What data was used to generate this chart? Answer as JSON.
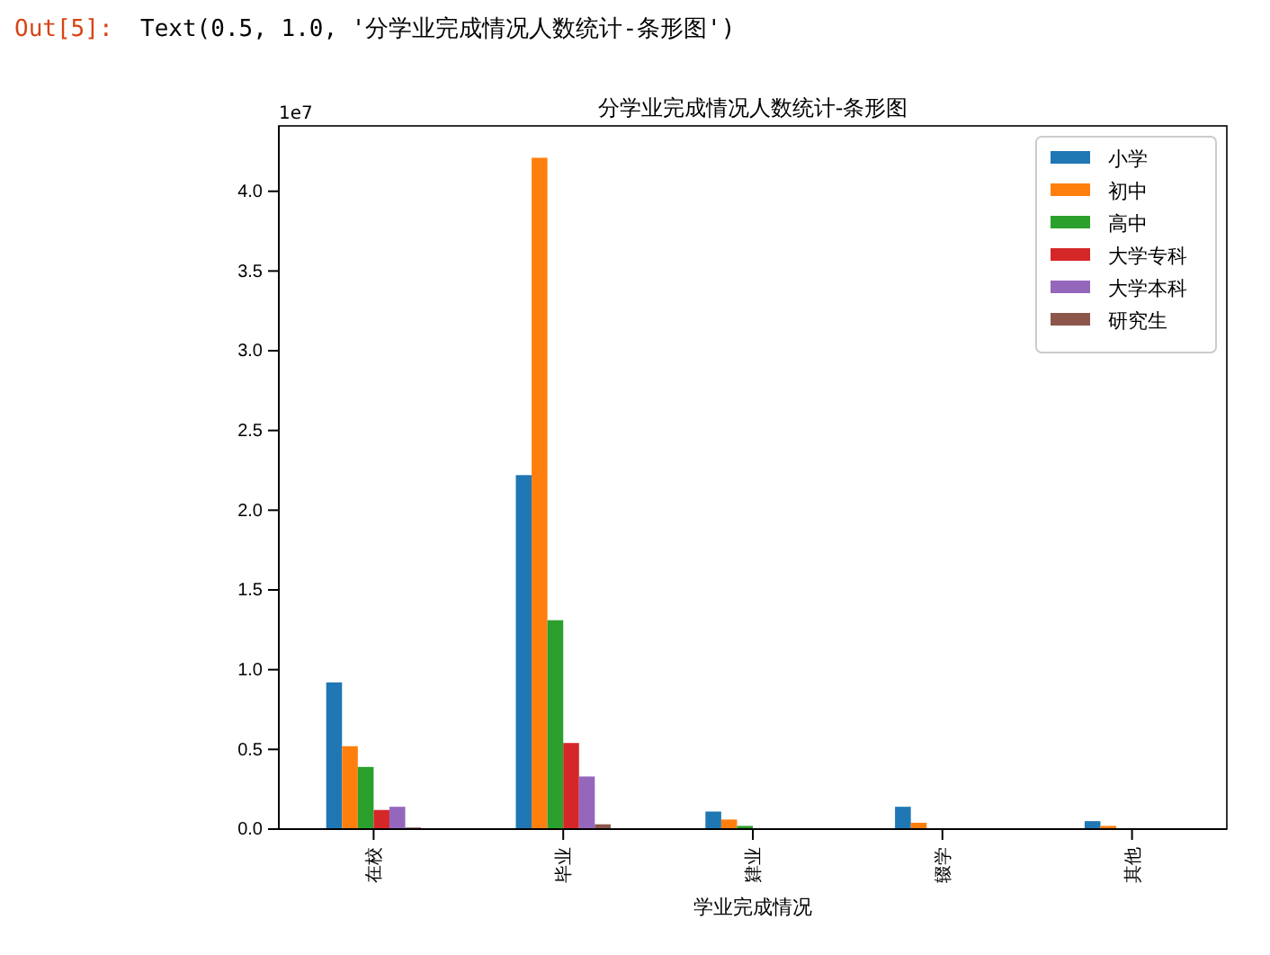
{
  "chart_data": {
    "type": "bar",
    "title": "分学业完成情况人数统计-条形图",
    "xlabel": "学业完成情况",
    "categories": [
      "在校",
      "毕业",
      "肄业",
      "辍学",
      "其他"
    ],
    "series": [
      {
        "name": "小学",
        "color": "#1f77b4",
        "values": [
          0.92,
          2.22,
          0.11,
          0.14,
          0.05
        ]
      },
      {
        "name": "初中",
        "color": "#ff7f0e",
        "values": [
          0.52,
          4.21,
          0.06,
          0.04,
          0.02
        ]
      },
      {
        "name": "高中",
        "color": "#2ca02c",
        "values": [
          0.39,
          1.31,
          0.02,
          0,
          0
        ]
      },
      {
        "name": "大学专科",
        "color": "#d62728",
        "values": [
          0.12,
          0.54,
          0,
          0,
          0
        ]
      },
      {
        "name": "大学本科",
        "color": "#9467bd",
        "values": [
          0.14,
          0.33,
          0,
          0,
          0
        ]
      },
      {
        "name": "研究生",
        "color": "#8c564b",
        "values": [
          0.01,
          0.03,
          0,
          0,
          0
        ]
      }
    ],
    "ylim": [
      0,
      4.41
    ],
    "yticks": [
      {
        "value": 0,
        "label": "0.0"
      },
      {
        "value": 0.5,
        "label": "0.5"
      },
      {
        "value": 1,
        "label": "1.0"
      },
      {
        "value": 1.5,
        "label": "1.5"
      },
      {
        "value": 2,
        "label": "2.0"
      },
      {
        "value": 2.5,
        "label": "2.5"
      },
      {
        "value": 3,
        "label": "3.0"
      },
      {
        "value": 3.5,
        "label": "3.5"
      },
      {
        "value": 4,
        "label": "4.0"
      }
    ],
    "legend": "top right",
    "grid": false,
    "annotations": [
      "Out[5]:",
      "Text(0.5, 1.0, '分学业完成情况人数统计-条形图')",
      "1e7"
    ]
  }
}
